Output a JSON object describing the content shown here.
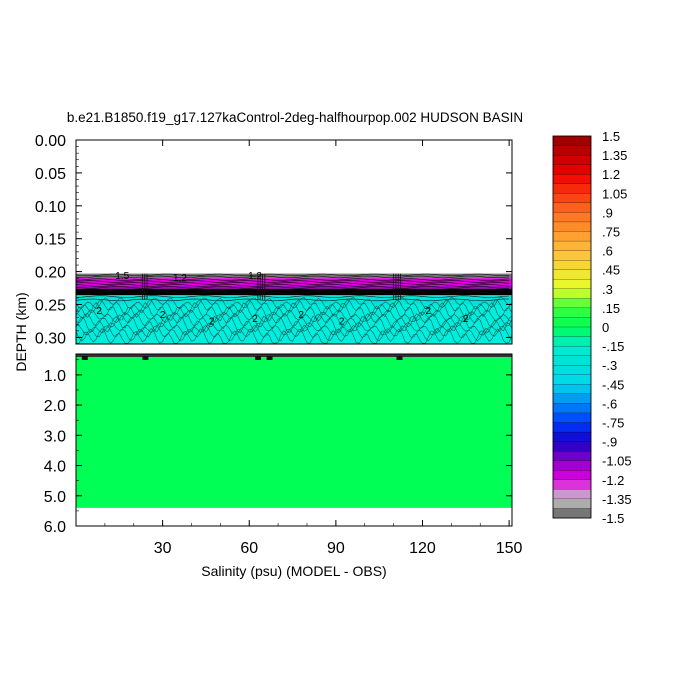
{
  "chart_data": {
    "type": "heatmap",
    "title": "b.e21.B1850.f19_g17.127kaControl-2deg-halfhourpop.002 HUDSON BASIN",
    "xlabel": "Salinity (psu) (MODEL - OBS)",
    "ylabel": "DEPTH (km)",
    "x_ticks": [
      "30",
      "60",
      "90",
      "120",
      "150"
    ],
    "x_tick_values": [
      30,
      60,
      90,
      120,
      150
    ],
    "xlim": [
      0,
      151
    ],
    "upper_panel": {
      "ylim": [
        0.0,
        0.31
      ],
      "y_ticks": [
        "0.00",
        "0.05",
        "0.10",
        "0.15",
        "0.20",
        "0.25",
        "0.30"
      ],
      "y_tick_values": [
        0.0,
        0.05,
        0.1,
        0.15,
        0.2,
        0.25,
        0.3
      ]
    },
    "lower_panel": {
      "ylim": [
        0.31,
        6.0
      ],
      "y_ticks": [
        "1.0",
        "2.0",
        "3.0",
        "4.0",
        "5.0",
        "6.0"
      ],
      "y_tick_values": [
        1.0,
        2.0,
        3.0,
        4.0,
        5.0,
        6.0
      ]
    },
    "contour_labels": [
      "1.5",
      "1.2",
      "1.2",
      "2",
      "2",
      "2",
      "2",
      "2",
      "2",
      "2",
      "2"
    ],
    "colorbar": {
      "min": -1.5,
      "max": 1.5,
      "step": 0.075,
      "labels": [
        "1.5",
        "1.35",
        "1.2",
        "1.05",
        ".9",
        ".75",
        ".6",
        ".45",
        ".3",
        ".15",
        "0",
        "-.15",
        "-.3",
        "-.45",
        "-.6",
        "-.75",
        "-.9",
        "-1.05",
        "-1.2",
        "-1.35",
        "-1.5"
      ],
      "label_values": [
        1.5,
        1.35,
        1.2,
        1.05,
        0.9,
        0.75,
        0.6,
        0.45,
        0.3,
        0.15,
        0,
        -0.15,
        -0.3,
        -0.45,
        -0.6,
        -0.75,
        -0.9,
        -1.05,
        -1.2,
        -1.35,
        -1.5
      ]
    },
    "field_colors": {
      "deep_ocean": "#00ff55",
      "upper_cyan": "#00eedd",
      "magenta_band": "#dd00dd",
      "dark_band": "#000000",
      "no_data": "#ffffff"
    }
  }
}
